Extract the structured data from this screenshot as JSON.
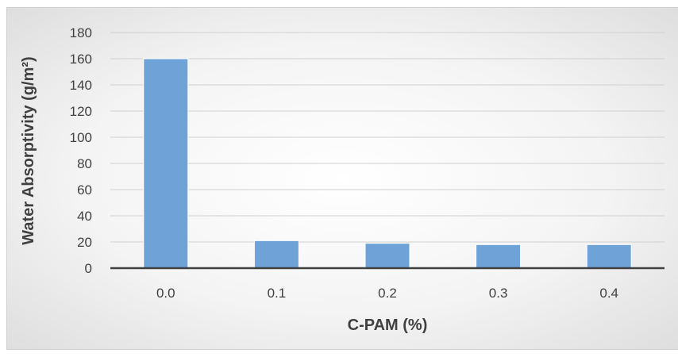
{
  "chart_data": {
    "type": "bar",
    "categories": [
      "0.0",
      "0.1",
      "0.2",
      "0.3",
      "0.4"
    ],
    "values": [
      160,
      21,
      19,
      18,
      18
    ],
    "title": "",
    "xlabel": "C-PAM (%)",
    "ylabel": "Water Absorptivity (g/m²)",
    "ylim": [
      0,
      180
    ],
    "yticks": [
      "0",
      "20",
      "40",
      "60",
      "80",
      "100",
      "120",
      "140",
      "160",
      "180"
    ],
    "grid": true,
    "legend": "none",
    "bar_color": "#6fa3d8",
    "bar_edge_color": "#ffffff",
    "grid_color": "#d0d0d0",
    "axis_color": "#404040"
  }
}
